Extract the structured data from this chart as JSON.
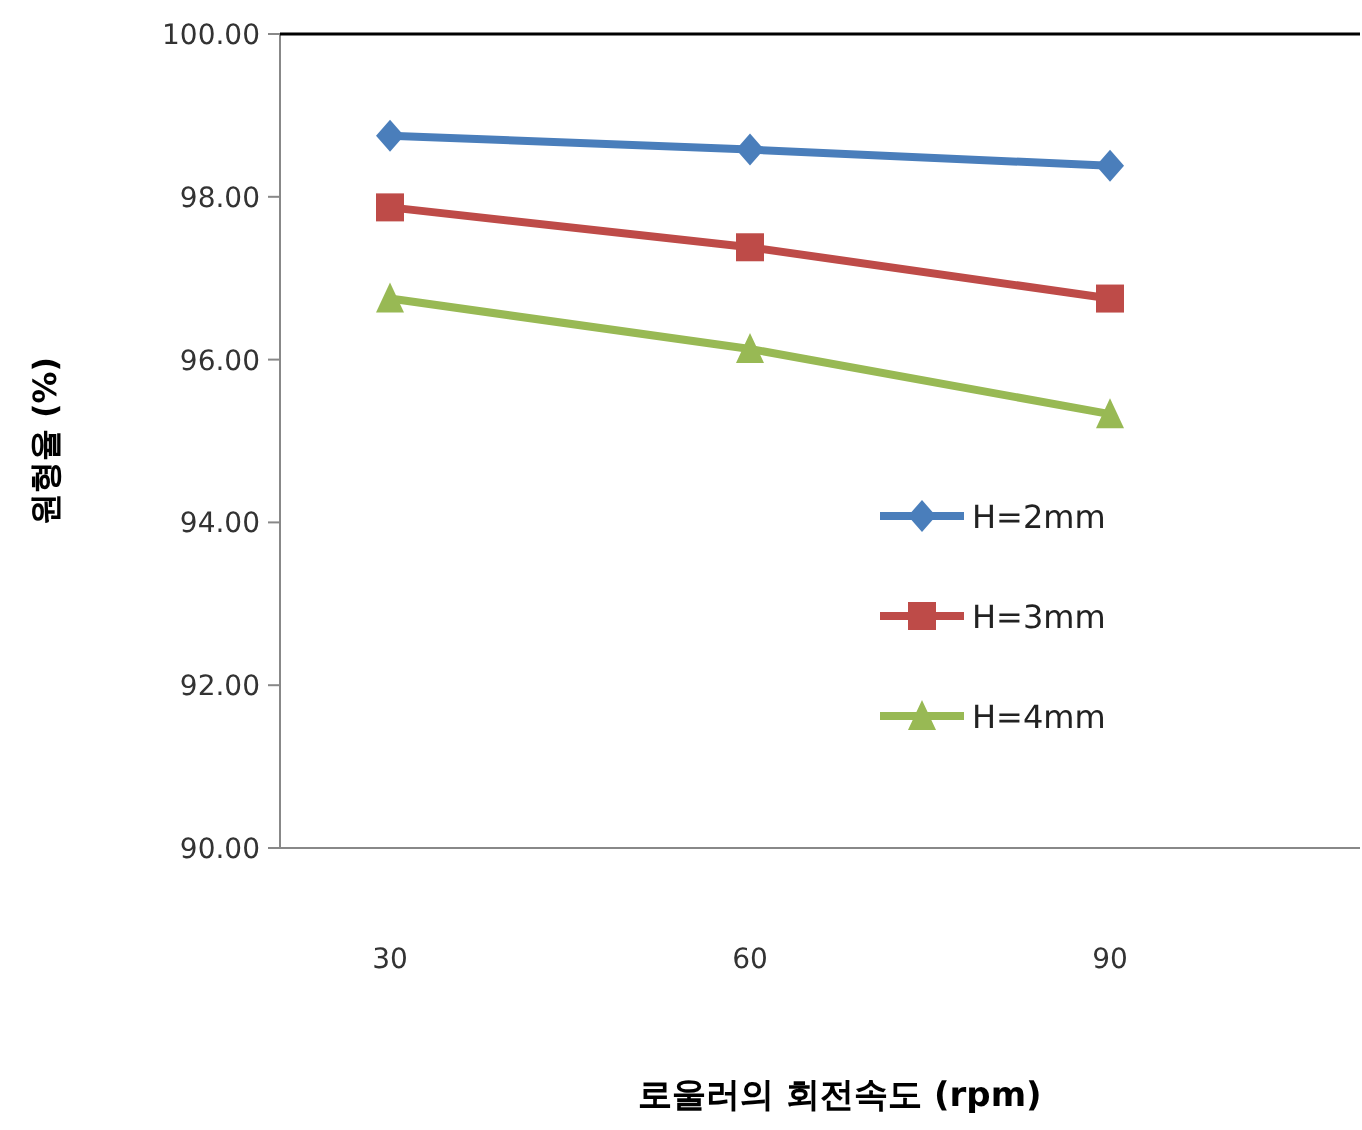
{
  "chart_data": {
    "type": "line",
    "xlabel": "로울러의 회전속도 (rpm)",
    "ylabel": "원형율 (%)",
    "categories": [
      "30",
      "60",
      "90"
    ],
    "series": [
      {
        "name": "H=2mm",
        "color": "#4a7ebb",
        "marker": "diamond",
        "values": [
          98.75,
          98.58,
          98.38
        ]
      },
      {
        "name": "H=3mm",
        "color": "#be4b48",
        "marker": "square",
        "values": [
          97.87,
          97.38,
          96.75
        ]
      },
      {
        "name": "H=4mm",
        "color": "#98b954",
        "marker": "triangle",
        "values": [
          96.75,
          96.13,
          95.33
        ]
      }
    ],
    "ylim": [
      90,
      100
    ],
    "yticks": [
      {
        "value": 90,
        "label": "90.00"
      },
      {
        "value": 92,
        "label": "92.00"
      },
      {
        "value": 94,
        "label": "94.00"
      },
      {
        "value": 96,
        "label": "96.00"
      },
      {
        "value": 98,
        "label": "98.00"
      },
      {
        "value": 100,
        "label": "100.00"
      }
    ],
    "grid": false,
    "legend": "right",
    "line_style": "solid"
  }
}
